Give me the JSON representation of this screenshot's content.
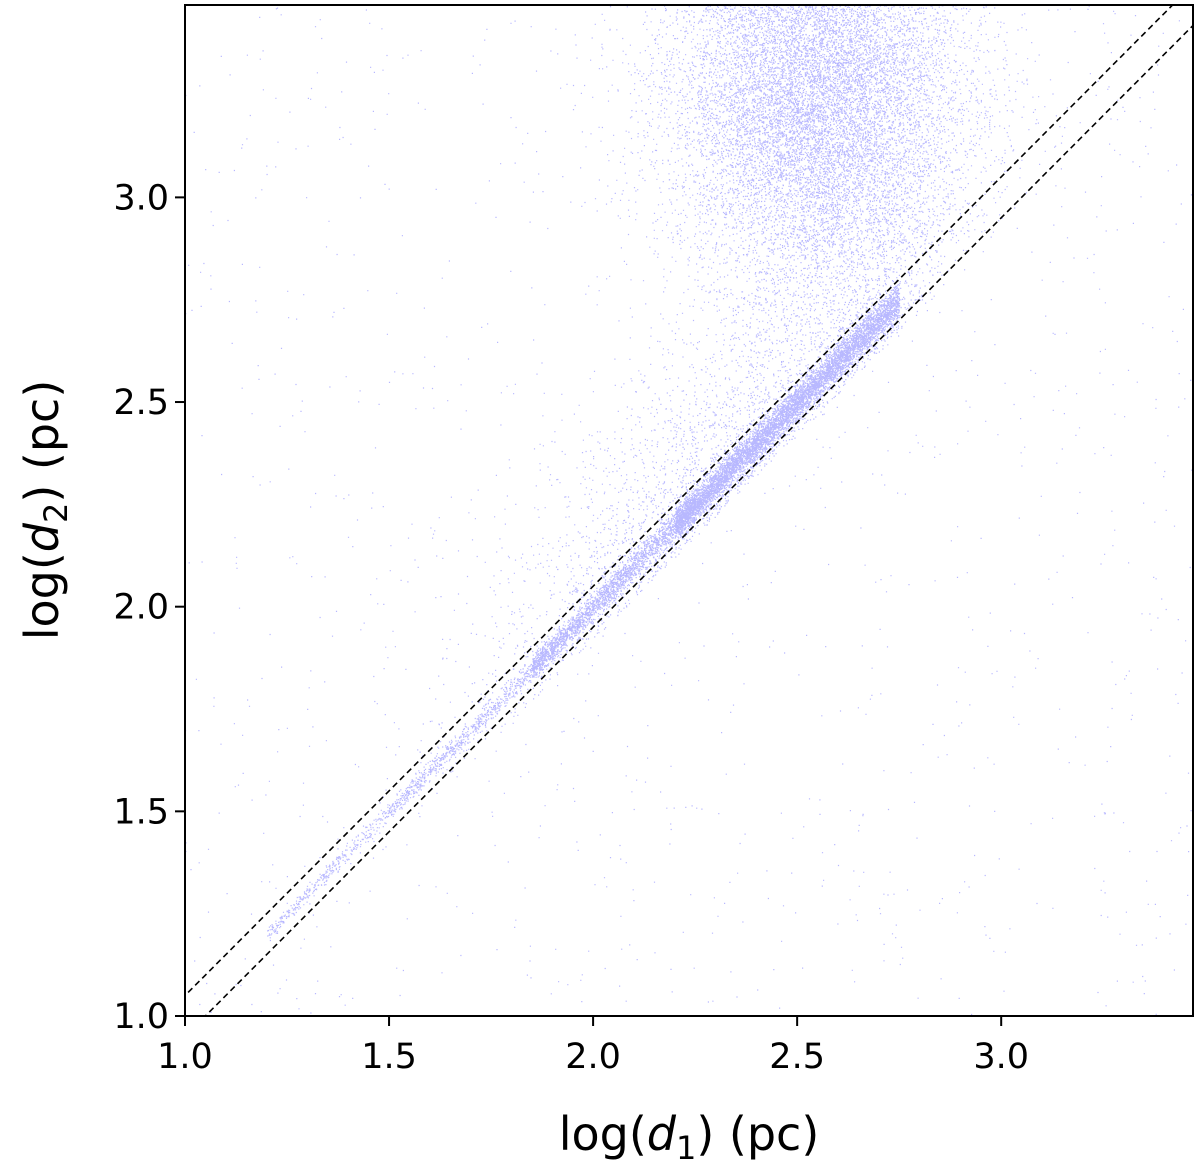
{
  "chart_data": {
    "type": "scatter",
    "title": "",
    "xlabel": {
      "prefix": "log(",
      "var": "d",
      "sub": "1",
      "suffix": ") (pc)"
    },
    "ylabel": {
      "prefix": "log(",
      "var": "d",
      "sub": "2",
      "suffix": ") (pc)"
    },
    "xlim": [
      1.0,
      3.47
    ],
    "ylim": [
      1.0,
      3.47
    ],
    "xticks": [
      1.0,
      1.5,
      2.0,
      2.5,
      3.0
    ],
    "yticks": [
      1.0,
      1.5,
      2.0,
      2.5,
      3.0
    ],
    "xtick_labels": [
      "1.0",
      "1.5",
      "2.0",
      "2.5",
      "3.0"
    ],
    "ytick_labels": [
      "1.0",
      "1.5",
      "2.0",
      "2.5",
      "3.0"
    ],
    "grid": false,
    "legend": "none",
    "point_color": "#0000ff",
    "line_color": "#000000",
    "series": [
      {
        "kind": "points",
        "approx_count": 60000,
        "components": [
          {
            "description": "tight relation along y = x",
            "x_range": [
              1.2,
              2.95
            ],
            "scatter_dex": 0.012
          },
          {
            "description": "diffuse cloud above",
            "x_center": 2.55,
            "y_center": 3.25,
            "x_sd": 0.18,
            "y_sd": 0.25
          },
          {
            "description": "sparse background",
            "x_range": [
              1.0,
              3.47
            ],
            "y_range": [
              1.0,
              3.47
            ]
          }
        ]
      }
    ],
    "reference_lines": [
      {
        "style": "dashed",
        "slope": 1,
        "intercept": 0.05
      },
      {
        "style": "dashed",
        "slope": 1,
        "intercept": -0.05
      }
    ]
  }
}
